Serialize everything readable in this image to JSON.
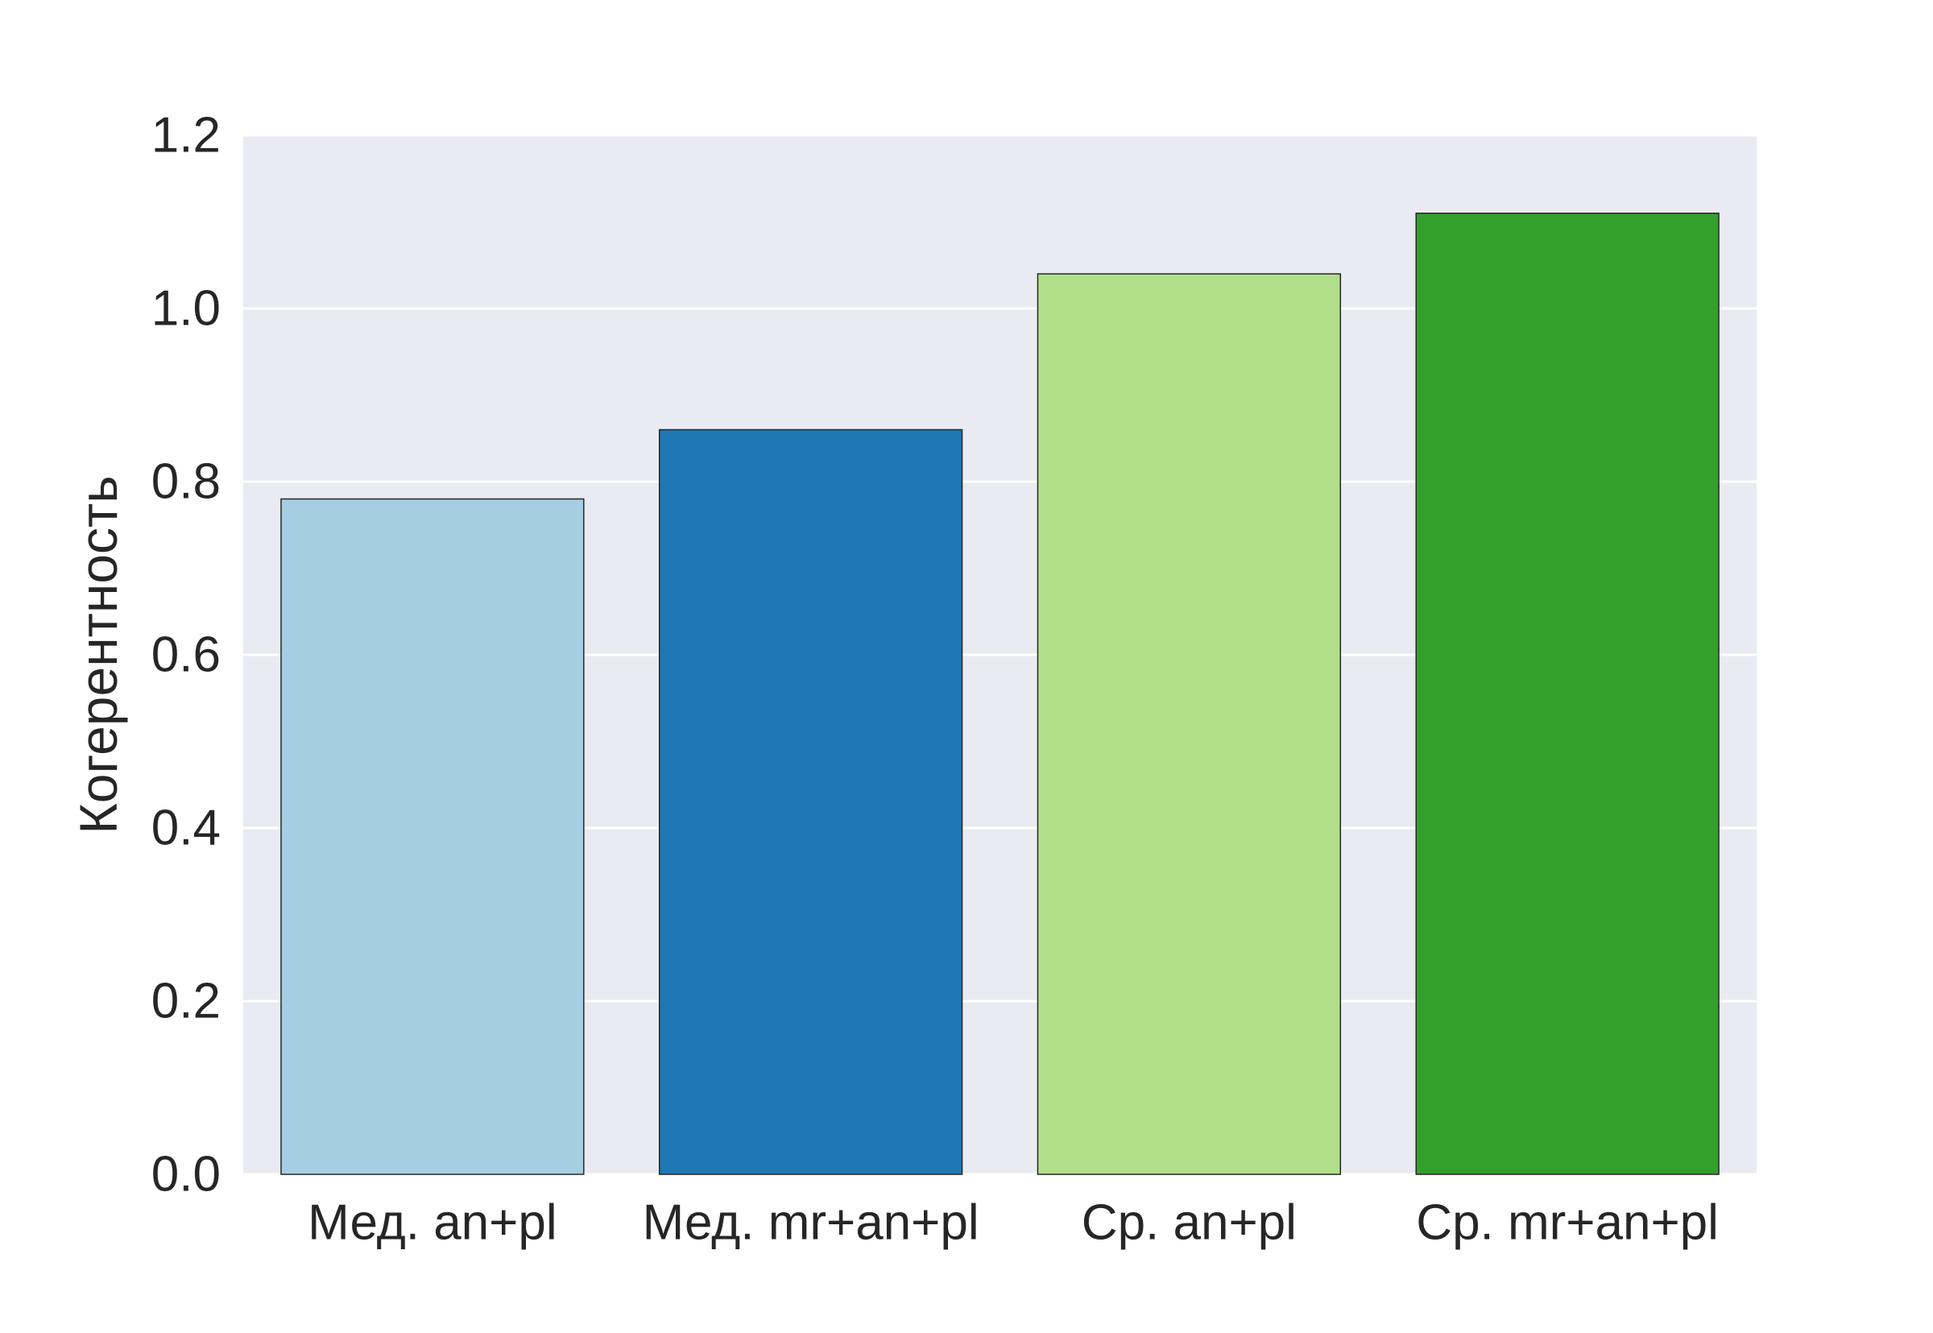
{
  "chart_data": {
    "type": "bar",
    "title": "",
    "xlabel": "",
    "ylabel": "Когерентность",
    "categories": [
      "Мед. an+pl",
      "Мед. mr+an+pl",
      "Ср. an+pl",
      "Ср. mr+an+pl"
    ],
    "values": [
      0.78,
      0.86,
      1.04,
      1.11
    ],
    "colors": [
      "#a6cee3",
      "#1f78b4",
      "#b2df8a",
      "#33a02c"
    ],
    "ylim": [
      0,
      1.2
    ],
    "yticks": [
      "0.0",
      "0.2",
      "0.4",
      "0.6",
      "0.8",
      "1.0",
      "1.2"
    ],
    "grid": true,
    "background": "#eaeaf2",
    "edge_color": "#262626"
  }
}
